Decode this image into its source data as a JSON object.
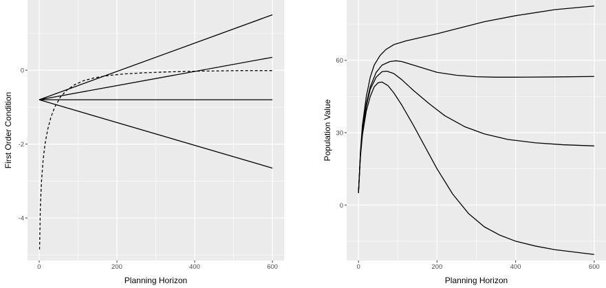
{
  "colors": {
    "panel_background": "#ebebeb",
    "major_grid": "#ffffff",
    "minor_grid": "#f4f4f4",
    "line": "#000000"
  },
  "chart_data": [
    {
      "type": "line",
      "title": "",
      "xlabel": "Planning Horizon",
      "ylabel": "First Order Condition",
      "xlim": [
        -30,
        630
      ],
      "ylim": [
        -5.15,
        1.9
      ],
      "x_ticks": [
        0,
        200,
        400,
        600
      ],
      "x_tick_labels": [
        "0",
        "200",
        "400",
        "600"
      ],
      "x_minor_ticks": [
        100,
        300,
        500
      ],
      "y_ticks": [
        -4,
        -2,
        0
      ],
      "y_tick_labels": [
        "-4",
        "-2",
        "0"
      ],
      "y_minor_ticks": [
        -5,
        -3,
        -1,
        1
      ],
      "grid": true,
      "legend": "none",
      "series": [
        {
          "style": "solid",
          "x": [
            0,
            600
          ],
          "y": [
            -0.8,
            1.5
          ]
        },
        {
          "style": "solid",
          "x": [
            0,
            600
          ],
          "y": [
            -0.8,
            0.35
          ]
        },
        {
          "style": "solid",
          "x": [
            0,
            600
          ],
          "y": [
            -0.8,
            -0.8
          ]
        },
        {
          "style": "solid",
          "x": [
            0,
            600
          ],
          "y": [
            -0.8,
            -2.65
          ]
        },
        {
          "style": "dashed",
          "x": [
            1,
            3,
            6,
            10,
            15,
            22,
            30,
            40,
            55,
            70,
            90,
            115,
            145,
            180,
            220,
            270,
            320,
            380,
            450,
            520,
            600
          ],
          "y": [
            -4.85,
            -3.7,
            -3.0,
            -2.45,
            -2.0,
            -1.6,
            -1.28,
            -1.0,
            -0.72,
            -0.55,
            -0.4,
            -0.28,
            -0.2,
            -0.14,
            -0.1,
            -0.07,
            -0.05,
            -0.03,
            -0.02,
            -0.01,
            -0.01
          ]
        }
      ]
    },
    {
      "type": "line",
      "title": "",
      "xlabel": "Planning Horizon",
      "ylabel": "Population Value",
      "xlim": [
        -30,
        630
      ],
      "ylim": [
        -23,
        85
      ],
      "x_ticks": [
        0,
        200,
        400,
        600
      ],
      "x_tick_labels": [
        "0",
        "200",
        "400",
        "600"
      ],
      "x_minor_ticks": [
        100,
        300,
        500
      ],
      "y_ticks": [
        0,
        30,
        60
      ],
      "y_tick_labels": [
        "0",
        "30",
        "60"
      ],
      "y_minor_ticks": [
        -15,
        15,
        45,
        75
      ],
      "grid": true,
      "legend": "none",
      "series": [
        {
          "style": "solid",
          "x": [
            0,
            5,
            10,
            20,
            30,
            40,
            55,
            70,
            90,
            120,
            160,
            200,
            260,
            320,
            400,
            500,
            600
          ],
          "y": [
            5,
            22,
            33,
            45,
            53,
            58,
            62,
            64.5,
            66.5,
            68,
            69.5,
            71,
            73.5,
            76,
            78.5,
            81,
            82.5
          ]
        },
        {
          "style": "solid",
          "x": [
            0,
            5,
            10,
            20,
            30,
            45,
            60,
            80,
            95,
            110,
            130,
            160,
            200,
            250,
            300,
            350,
            400,
            500,
            600
          ],
          "y": [
            5,
            21,
            31,
            42,
            49,
            55,
            58,
            59.5,
            59.8,
            59.5,
            58.5,
            57,
            55,
            53.8,
            53.2,
            53,
            53,
            53.1,
            53.3
          ]
        },
        {
          "style": "solid",
          "x": [
            0,
            5,
            10,
            20,
            30,
            45,
            60,
            72,
            90,
            110,
            140,
            180,
            220,
            270,
            320,
            380,
            450,
            520,
            600
          ],
          "y": [
            5,
            21,
            30,
            41,
            48,
            53,
            55.3,
            55.5,
            54.5,
            52,
            47.5,
            42,
            37,
            32.5,
            29.5,
            27.2,
            25.8,
            25,
            24.5
          ]
        },
        {
          "style": "solid",
          "x": [
            0,
            5,
            10,
            20,
            30,
            40,
            50,
            60,
            75,
            90,
            110,
            140,
            170,
            200,
            240,
            280,
            320,
            360,
            400,
            450,
            500,
            550,
            600
          ],
          "y": [
            5,
            20,
            29,
            39,
            45,
            49,
            50.7,
            51,
            49.5,
            46.5,
            41.5,
            33,
            24,
            15,
            4.5,
            -3.5,
            -9,
            -12.5,
            -15,
            -17,
            -18.5,
            -19.5,
            -20.5
          ]
        }
      ]
    }
  ]
}
